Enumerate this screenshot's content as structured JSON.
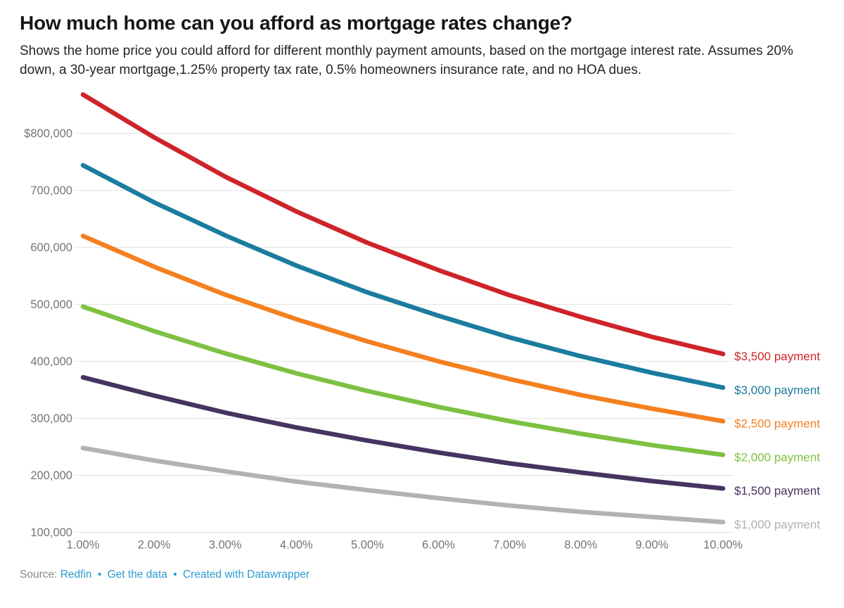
{
  "chart_data": {
    "type": "line",
    "title": "How much home can you afford as mortgage rates change?",
    "subtitle": "Shows the home price you could afford for different monthly payment amounts, based on the mortgage interest rate. Assumes 20% down, a 30-year mortgage,1.25% property tax rate, 0.5% homeowners insurance rate, and no HOA dues.",
    "xlabel": "",
    "ylabel": "",
    "grid": true,
    "legend_position": "right-of-line-ends",
    "x": [
      1,
      2,
      3,
      4,
      5,
      6,
      7,
      8,
      9,
      10
    ],
    "x_tick_labels": [
      "1.00%",
      "2.00%",
      "3.00%",
      "4.00%",
      "5.00%",
      "6.00%",
      "7.00%",
      "8.00%",
      "9.00%",
      "10.00%"
    ],
    "xlim": [
      1,
      10
    ],
    "y_ticks": [
      {
        "value": 800000,
        "label": "$800,000"
      },
      {
        "value": 700000,
        "label": "700,000"
      },
      {
        "value": 600000,
        "label": "600,000"
      },
      {
        "value": 500000,
        "label": "500,000"
      },
      {
        "value": 400000,
        "label": "400,000"
      },
      {
        "value": 300000,
        "label": "300,000"
      },
      {
        "value": 200000,
        "label": "200,000"
      },
      {
        "value": 100000,
        "label": "100,000"
      }
    ],
    "ylim": [
      100000,
      870000
    ],
    "series": [
      {
        "name": "$3,500 payment",
        "color": "#ce2429",
        "values": [
          868000,
          793000,
          724000,
          663000,
          608000,
          560000,
          516000,
          478000,
          443000,
          413000
        ]
      },
      {
        "name": "$3,000 payment",
        "color": "#1a7c9e",
        "values": [
          744000,
          679000,
          621000,
          568000,
          521000,
          480000,
          442000,
          409000,
          380000,
          354000
        ]
      },
      {
        "name": "$2,500 payment",
        "color": "#f48020",
        "values": [
          620000,
          566000,
          517000,
          474000,
          435000,
          400000,
          369000,
          341000,
          317000,
          295000
        ]
      },
      {
        "name": "$2,000 payment",
        "color": "#7cc141",
        "values": [
          496000,
          453000,
          414000,
          379000,
          348000,
          320000,
          295000,
          273000,
          253000,
          236000
        ]
      },
      {
        "name": "$1,500 payment",
        "color": "#46345f",
        "values": [
          372000,
          340000,
          310000,
          284000,
          261000,
          240000,
          221000,
          205000,
          190000,
          177000
        ]
      },
      {
        "name": "$1,000 payment",
        "color": "#b2b2b2",
        "values": [
          248000,
          226000,
          207000,
          189000,
          174000,
          160000,
          147000,
          136000,
          127000,
          118000
        ]
      }
    ]
  },
  "footer": {
    "source_label": "Source:",
    "separator": "•",
    "links": [
      {
        "label": "Redfin"
      },
      {
        "label": "Get the data"
      },
      {
        "label": "Created with Datawrapper"
      }
    ],
    "link_color": "#2b9cd1"
  }
}
